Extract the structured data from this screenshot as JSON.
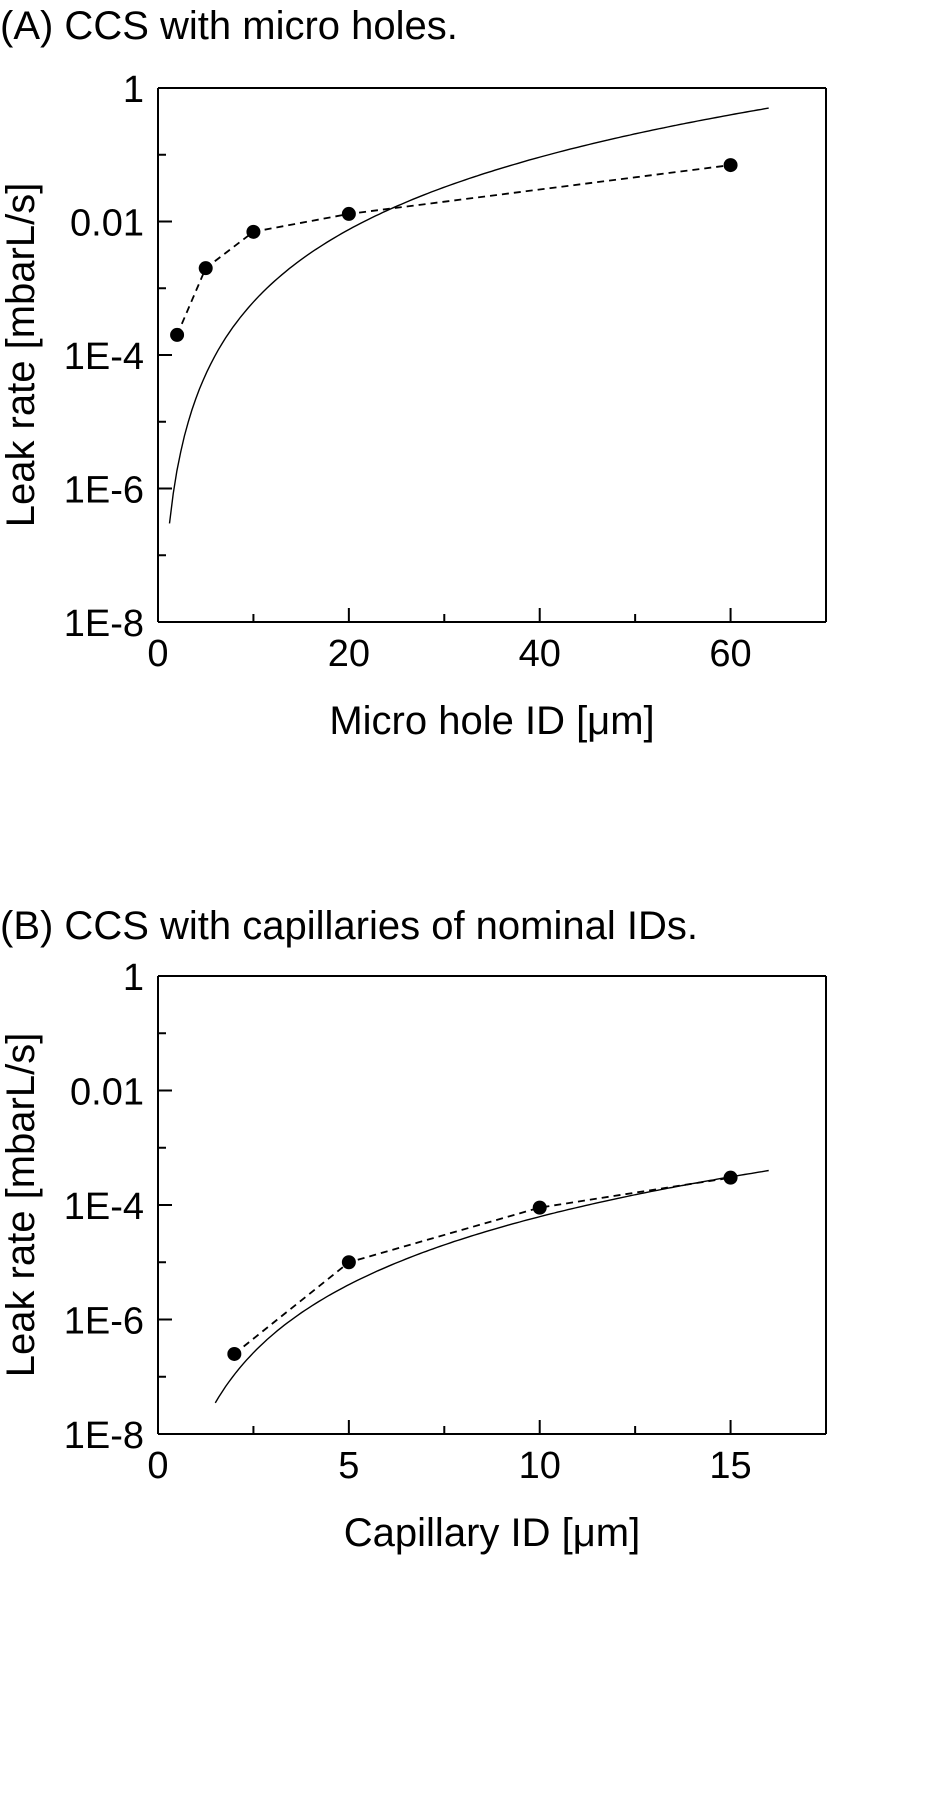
{
  "chart_data": [
    {
      "type": "scatter",
      "title": "(A) CCS with micro holes.",
      "xlabel": "Micro hole ID [μm]",
      "ylabel": "Leak rate [mbarL/s]",
      "xlim": [
        0,
        70
      ],
      "ylim": [
        1e-08,
        1
      ],
      "yscale": "log",
      "x_ticks": [
        0,
        20,
        40,
        60
      ],
      "y_ticks": [
        1e-08,
        1e-06,
        0.0001,
        0.01,
        1
      ],
      "x_tick_labels": [
        "0",
        "20",
        "40",
        "60"
      ],
      "y_tick_labels": [
        "1E-8",
        "1E-6",
        "1E-4",
        "0.01",
        "1"
      ],
      "grid": false,
      "series": [
        {
          "style": "points-dashed",
          "x": [
            2,
            5,
            10,
            20,
            60
          ],
          "y": [
            0.0002,
            0.002,
            0.007,
            0.013,
            0.07
          ]
        },
        {
          "style": "solid-line",
          "curve": {
            "x_start": 1.2,
            "x_end": 64,
            "y_at_x_start": 3e-07,
            "y_at_x_end": 0.5
          }
        }
      ]
    },
    {
      "type": "scatter",
      "title": "(B) CCS with capillaries of nominal IDs.",
      "xlabel": "Capillary ID [μm]",
      "ylabel": "Leak rate [mbarL/s]",
      "xlim": [
        0,
        17.5
      ],
      "ylim": [
        1e-08,
        1
      ],
      "yscale": "log",
      "x_ticks": [
        0,
        5,
        10,
        15
      ],
      "y_ticks": [
        1e-08,
        1e-06,
        0.0001,
        0.01,
        1
      ],
      "x_tick_labels": [
        "0",
        "5",
        "10",
        "15"
      ],
      "y_tick_labels": [
        "1E-8",
        "1E-6",
        "1E-4",
        "0.01",
        "1"
      ],
      "grid": false,
      "series": [
        {
          "style": "points-dashed",
          "x": [
            2,
            5,
            10,
            15
          ],
          "y": [
            2.5e-07,
            1e-05,
            9e-05,
            0.0003
          ]
        },
        {
          "style": "solid-line",
          "curve": {
            "x_start": 1.5,
            "x_end": 16,
            "y_at_x_start": 3.5e-08,
            "y_at_x_end": 0.0004
          }
        }
      ]
    }
  ]
}
